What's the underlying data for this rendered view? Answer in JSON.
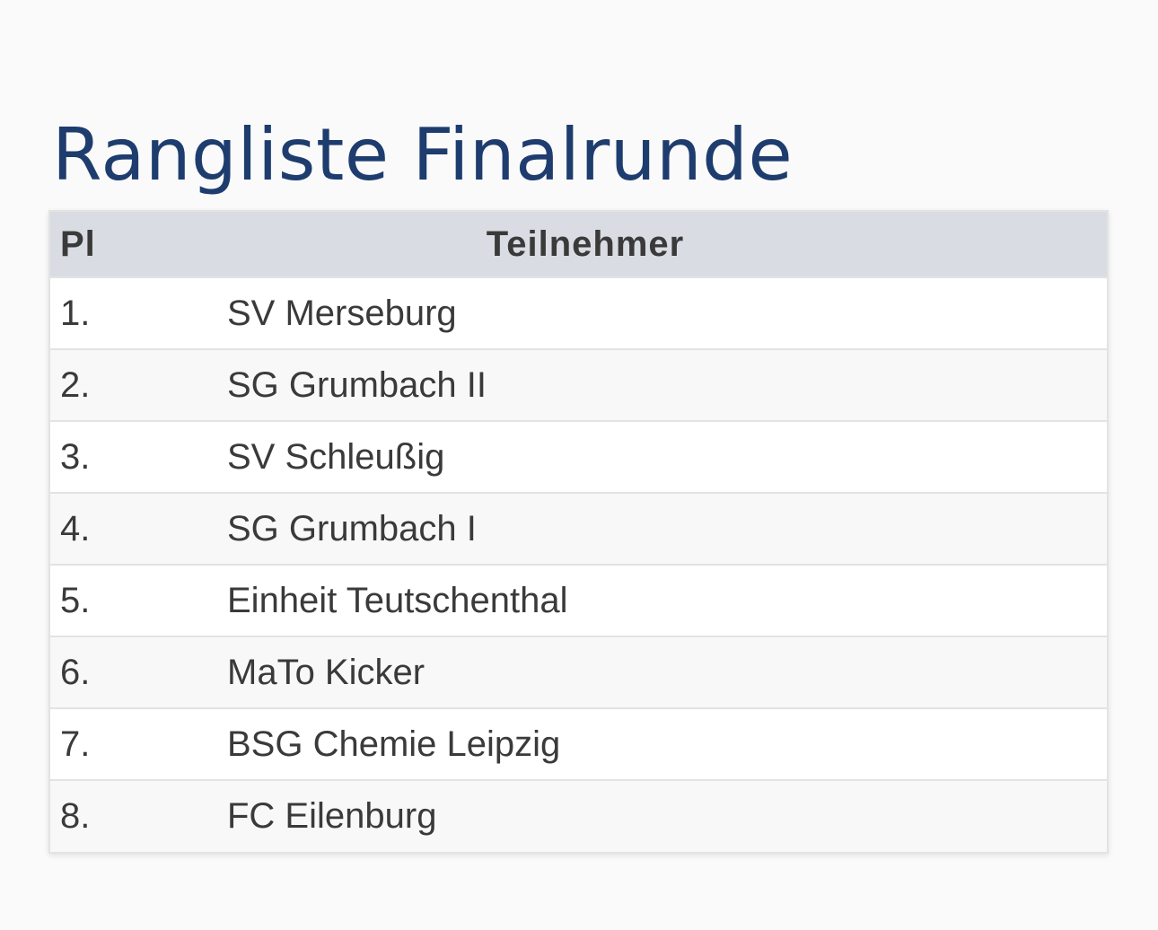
{
  "page_title": "Rangliste Finalrunde",
  "table": {
    "headers": {
      "place": "Pl",
      "team": "Teilnehmer"
    },
    "rows": [
      {
        "place": "1.",
        "team": "SV Merseburg"
      },
      {
        "place": "2.",
        "team": "SG Grumbach II"
      },
      {
        "place": "3.",
        "team": "SV Schleußig"
      },
      {
        "place": "4.",
        "team": "SG Grumbach I"
      },
      {
        "place": "5.",
        "team": "Einheit Teutschenthal"
      },
      {
        "place": "6.",
        "team": "MaTo Kicker"
      },
      {
        "place": "7.",
        "team": "BSG Chemie Leipzig"
      },
      {
        "place": "8.",
        "team": "FC Eilenburg"
      }
    ]
  },
  "colors": {
    "title": "#1e3d6e",
    "header_bg": "#d9dde3",
    "text": "#3a3a3a"
  }
}
